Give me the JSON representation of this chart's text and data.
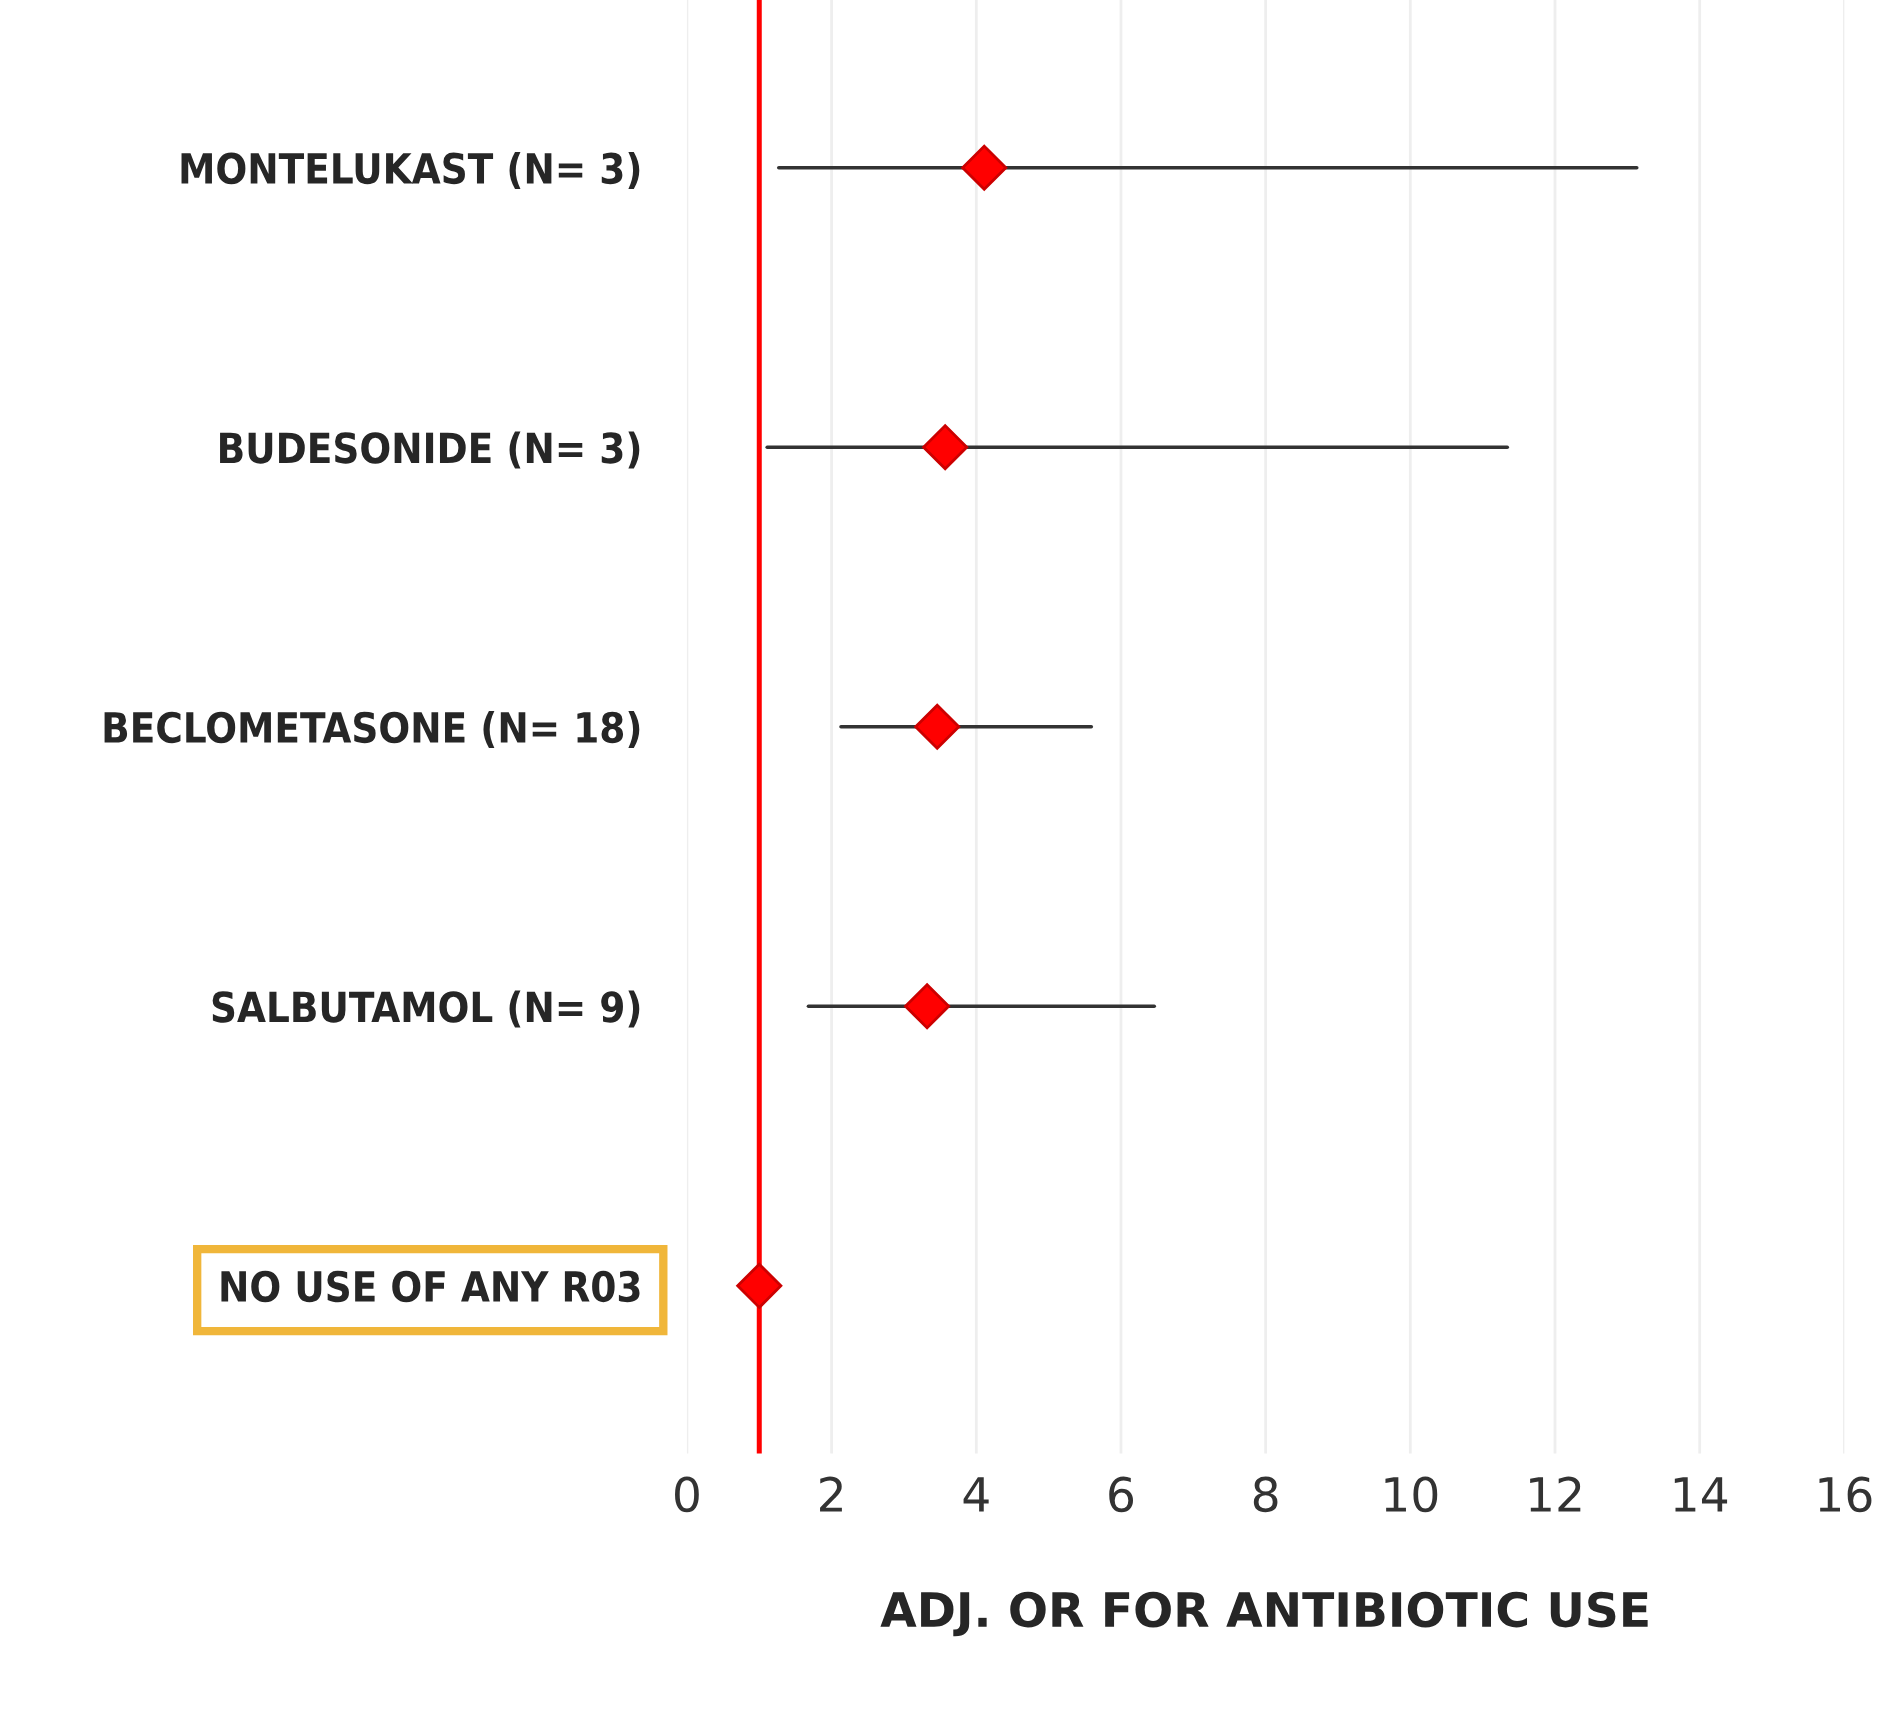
{
  "chart_data": {
    "type": "scatter",
    "orientation": "horizontal",
    "categories": [
      "MONTELUKAST (N= 3)",
      "BUDESONIDE (N= 3)",
      "BECLOMETASONE (N= 18)",
      "SALBUTAMOL (N= 9)",
      "NO USE OF ANY R03"
    ],
    "series": [
      {
        "color": "#ff0000",
        "values": [
          4.11,
          3.57,
          3.46,
          3.32,
          1.0
        ],
        "errors": [
          [
            1.27,
            13.13
          ],
          [
            1.11,
            11.34
          ],
          [
            2.13,
            5.59
          ],
          [
            1.68,
            6.46
          ],
          null
        ]
      }
    ],
    "xlim": [
      0,
      16
    ],
    "xticks": [
      0,
      2,
      4,
      6,
      8,
      10,
      12,
      14,
      16
    ],
    "xlabel": "ADJ. OR FOR ANTIBIOTIC USE",
    "ref_lines": [
      {
        "axis": "x",
        "value": 1,
        "color": "#ff0000"
      }
    ],
    "grid": "x",
    "marker": "diamond"
  }
}
